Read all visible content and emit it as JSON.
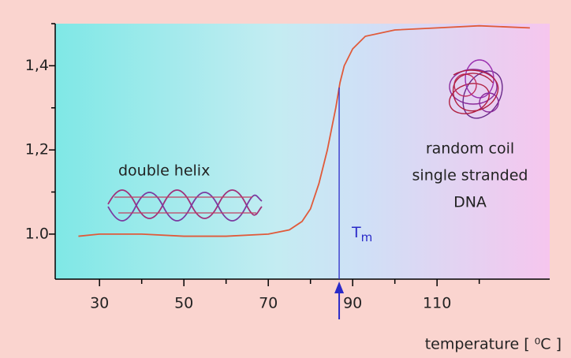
{
  "chart_data": {
    "type": "line",
    "xlabel": "temperature [ ⁰C ]",
    "xlim": [
      19.5,
      136.7
    ],
    "xticks": [
      30,
      50,
      70,
      90,
      110
    ],
    "xminor_ticks": [
      40,
      60,
      80,
      100,
      120
    ],
    "ylim": [
      0.893,
      1.5
    ],
    "yticks": [
      {
        "value": 1.0,
        "label": "1.0"
      },
      {
        "value": 1.2,
        "label": "1,2"
      },
      {
        "value": 1.4,
        "label": "1,4"
      }
    ],
    "yminor_ticks": [
      1.1,
      1.3,
      1.5
    ],
    "series": [
      {
        "color": "#e05a3a",
        "x": [
          25,
          30,
          40,
          50,
          60,
          70,
          75,
          78,
          80,
          82,
          84,
          85,
          86,
          87,
          88,
          90,
          93,
          100,
          110,
          120,
          132
        ],
        "y": [
          0.995,
          1.0,
          1.0,
          0.995,
          0.995,
          1.0,
          1.01,
          1.03,
          1.06,
          1.12,
          1.2,
          1.25,
          1.3,
          1.36,
          1.4,
          1.44,
          1.47,
          1.485,
          1.49,
          1.495,
          1.49
        ]
      }
    ],
    "tm": {
      "value": 86.8,
      "label": "T",
      "sub": "m",
      "color": "#2a2ac8"
    },
    "annotations": {
      "helix": "double helix",
      "coil": [
        "random coil",
        "single stranded",
        "DNA"
      ]
    }
  }
}
